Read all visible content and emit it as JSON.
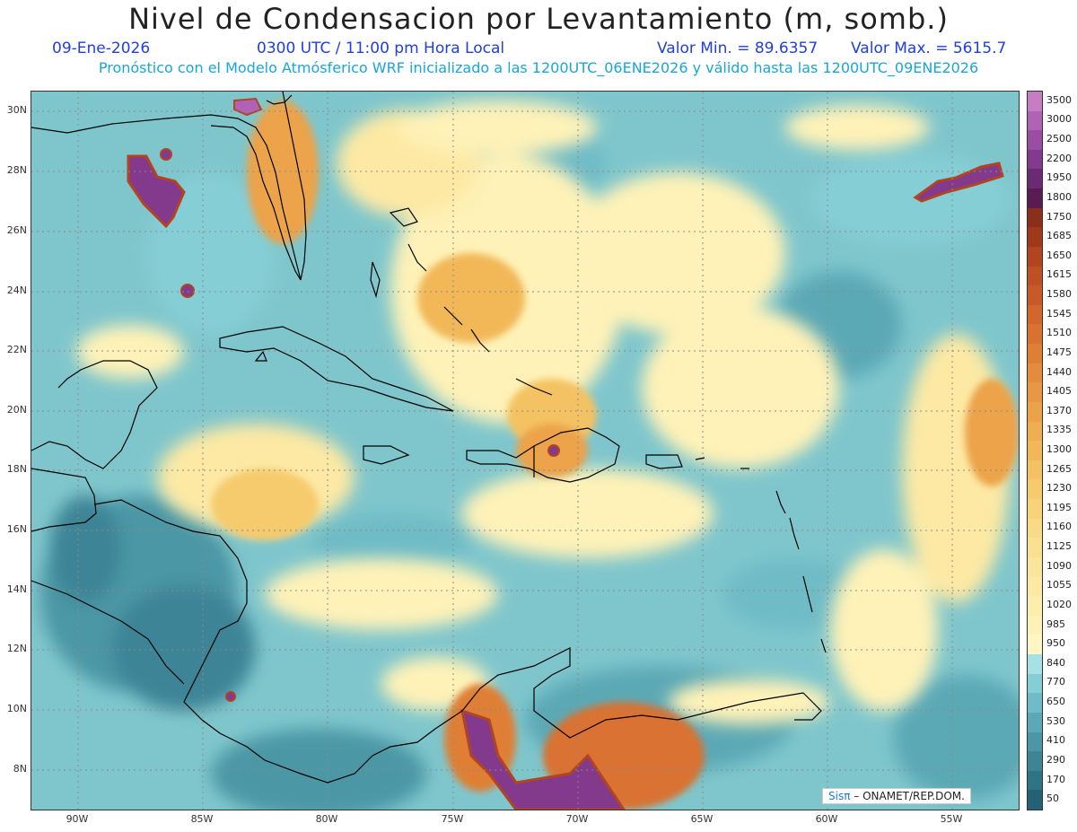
{
  "title": "Nivel de Condensacion por Levantamiento (m, somb.)",
  "date": "09-Ene-2026",
  "time": "0300 UTC / 11:00 pm Hora Local",
  "vmin": "Valor Min. = 89.6357",
  "vmax": "Valor Max. = 5615.7",
  "subtitle": "Pronóstico con el Modelo Atmósferico WRF inicializado a las 1200UTC_06ENE2026 y válido hasta las  1200UTC_09ENE2026",
  "credit": {
    "logo": "Sisπ",
    "text": "– ONAMET/REP.DOM."
  },
  "lat_labels": [
    "30N",
    "28N",
    "26N",
    "24N",
    "22N",
    "20N",
    "18N",
    "16N",
    "14N",
    "12N",
    "10N",
    "8N"
  ],
  "lon_labels": [
    "90W",
    "85W",
    "80W",
    "75W",
    "70W",
    "65W",
    "60W",
    "55W"
  ],
  "legend": {
    "labels": [
      "3500",
      "3000",
      "2500",
      "2200",
      "1950",
      "1800",
      "1750",
      "1685",
      "1650",
      "1615",
      "1580",
      "1545",
      "1510",
      "1475",
      "1440",
      "1405",
      "1370",
      "1335",
      "1300",
      "1265",
      "1230",
      "1195",
      "1160",
      "1125",
      "1090",
      "1055",
      "1020",
      "985",
      "950",
      "840",
      "770",
      "650",
      "530",
      "410",
      "290",
      "170",
      "50"
    ],
    "colors": [
      "#c77dc6",
      "#b062b4",
      "#9a4ea3",
      "#833a8c",
      "#6b2a74",
      "#5a1a52",
      "#8c2e1a",
      "#a1381b",
      "#b2441f",
      "#bf5024",
      "#c95a28",
      "#d2662c",
      "#d97231",
      "#df7f36",
      "#e48b3c",
      "#e89742",
      "#eca348",
      "#efae50",
      "#f2b858",
      "#f4c262",
      "#f6cb6d",
      "#f8d37a",
      "#f9da86",
      "#fae091",
      "#fbe59b",
      "#fce9a4",
      "#fdeeae",
      "#fef2b8",
      "#fef6c4",
      "#a7e1e6",
      "#86ced6",
      "#6fbcc6",
      "#5ba9b6",
      "#4b97a6",
      "#3c8496",
      "#2f7386",
      "#236276"
    ]
  },
  "coast_color": "#000000",
  "grid_color": "#8a8a8a"
}
